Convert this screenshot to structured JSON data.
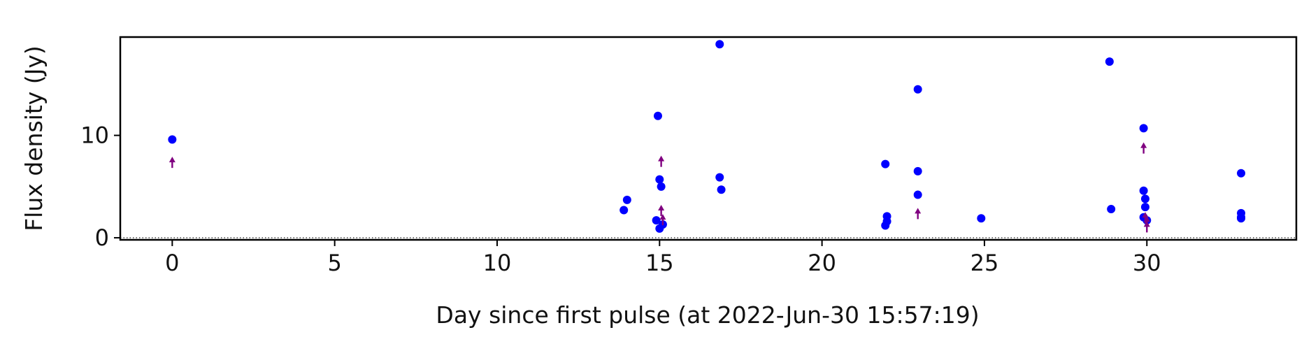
{
  "chart_data": {
    "type": "scatter",
    "xlabel": "Day since first pulse (at 2022-Jun-30 15:57:19)",
    "ylabel": "Flux density (Jy)",
    "xlim": [
      -1.6,
      34.6
    ],
    "ylim": [
      -0.2,
      19.6
    ],
    "xticks": [
      0,
      5,
      10,
      15,
      20,
      25,
      30
    ],
    "yticks": [
      0,
      10
    ],
    "grid": false,
    "reference_line": {
      "y": 0,
      "style": "dotted"
    },
    "series": [
      {
        "marker": "circle",
        "color": "#0000ff",
        "points": [
          {
            "x": 0.0,
            "y": 9.6
          },
          {
            "x": 13.9,
            "y": 2.7
          },
          {
            "x": 14.0,
            "y": 3.7
          },
          {
            "x": 14.9,
            "y": 1.7
          },
          {
            "x": 14.95,
            "y": 11.9
          },
          {
            "x": 15.0,
            "y": 0.9
          },
          {
            "x": 15.0,
            "y": 5.7
          },
          {
            "x": 15.05,
            "y": 5.0
          },
          {
            "x": 15.1,
            "y": 1.3
          },
          {
            "x": 16.85,
            "y": 18.9
          },
          {
            "x": 16.85,
            "y": 5.9
          },
          {
            "x": 16.9,
            "y": 4.7
          },
          {
            "x": 21.95,
            "y": 7.2
          },
          {
            "x": 22.0,
            "y": 2.1
          },
          {
            "x": 22.0,
            "y": 1.6
          },
          {
            "x": 21.95,
            "y": 1.2
          },
          {
            "x": 22.95,
            "y": 14.5
          },
          {
            "x": 22.95,
            "y": 6.5
          },
          {
            "x": 22.95,
            "y": 4.2
          },
          {
            "x": 24.9,
            "y": 1.9
          },
          {
            "x": 28.85,
            "y": 17.2
          },
          {
            "x": 28.9,
            "y": 2.8
          },
          {
            "x": 29.9,
            "y": 10.7
          },
          {
            "x": 29.9,
            "y": 4.6
          },
          {
            "x": 29.95,
            "y": 3.8
          },
          {
            "x": 29.95,
            "y": 3.0
          },
          {
            "x": 29.9,
            "y": 2.0
          },
          {
            "x": 30.0,
            "y": 1.7
          },
          {
            "x": 32.9,
            "y": 6.3
          },
          {
            "x": 32.9,
            "y": 2.4
          },
          {
            "x": 32.9,
            "y": 2.0
          },
          {
            "x": 32.9,
            "y": 1.9
          }
        ]
      },
      {
        "marker": "upper-limit-arrow",
        "color": "#800080",
        "points": [
          {
            "x": 0.0,
            "y": 7.3
          },
          {
            "x": 15.05,
            "y": 7.4
          },
          {
            "x": 15.05,
            "y": 2.6
          },
          {
            "x": 15.1,
            "y": 1.7
          },
          {
            "x": 22.95,
            "y": 2.3
          },
          {
            "x": 29.9,
            "y": 8.7
          },
          {
            "x": 29.95,
            "y": 1.9
          },
          {
            "x": 30.0,
            "y": 1.5
          },
          {
            "x": 30.0,
            "y": 1.0
          }
        ]
      }
    ]
  }
}
